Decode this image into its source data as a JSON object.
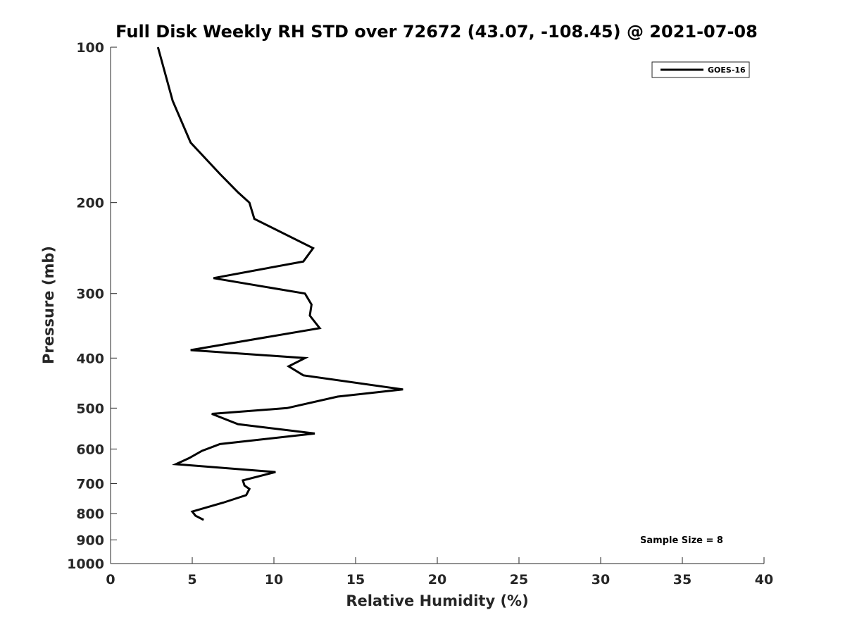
{
  "chart_data": {
    "type": "line",
    "title": "Full Disk Weekly RH STD over 72672 (43.07, -108.45) @ 2021-07-08",
    "xlabel": "Relative Humidity (%)",
    "ylabel": "Pressure (mb)",
    "xlim": [
      0,
      40
    ],
    "ylim": [
      100,
      1000
    ],
    "y_scale": "log",
    "y_reversed": true,
    "x_ticks": [
      0,
      5,
      10,
      15,
      20,
      25,
      30,
      35,
      40
    ],
    "y_ticks": [
      100,
      200,
      300,
      400,
      500,
      600,
      700,
      800,
      900,
      1000
    ],
    "grid": false,
    "legend_position": "top-right",
    "series": [
      {
        "name": "GOES-16",
        "color": "#000000",
        "points": [
          {
            "x": 2.9,
            "p": 100
          },
          {
            "x": 3.8,
            "p": 127
          },
          {
            "x": 4.9,
            "p": 153
          },
          {
            "x": 6.7,
            "p": 176
          },
          {
            "x": 7.8,
            "p": 191
          },
          {
            "x": 8.5,
            "p": 200
          },
          {
            "x": 8.8,
            "p": 215
          },
          {
            "x": 12.4,
            "p": 245
          },
          {
            "x": 11.8,
            "p": 260
          },
          {
            "x": 6.3,
            "p": 280
          },
          {
            "x": 11.9,
            "p": 300
          },
          {
            "x": 12.3,
            "p": 315
          },
          {
            "x": 12.2,
            "p": 331
          },
          {
            "x": 12.8,
            "p": 350
          },
          {
            "x": 4.9,
            "p": 386
          },
          {
            "x": 11.9,
            "p": 400
          },
          {
            "x": 10.9,
            "p": 415
          },
          {
            "x": 11.8,
            "p": 432
          },
          {
            "x": 17.9,
            "p": 460
          },
          {
            "x": 13.9,
            "p": 475
          },
          {
            "x": 10.8,
            "p": 500
          },
          {
            "x": 6.2,
            "p": 513
          },
          {
            "x": 7.8,
            "p": 537
          },
          {
            "x": 12.5,
            "p": 560
          },
          {
            "x": 6.7,
            "p": 587
          },
          {
            "x": 5.6,
            "p": 605
          },
          {
            "x": 4.8,
            "p": 625
          },
          {
            "x": 4.0,
            "p": 642
          },
          {
            "x": 10.1,
            "p": 665
          },
          {
            "x": 8.1,
            "p": 690
          },
          {
            "x": 8.2,
            "p": 706
          },
          {
            "x": 8.5,
            "p": 717
          },
          {
            "x": 8.3,
            "p": 737
          },
          {
            "x": 6.9,
            "p": 762
          },
          {
            "x": 5.0,
            "p": 793
          },
          {
            "x": 5.2,
            "p": 808
          },
          {
            "x": 5.7,
            "p": 823
          }
        ]
      }
    ],
    "annotation": "Sample Size = 8"
  }
}
